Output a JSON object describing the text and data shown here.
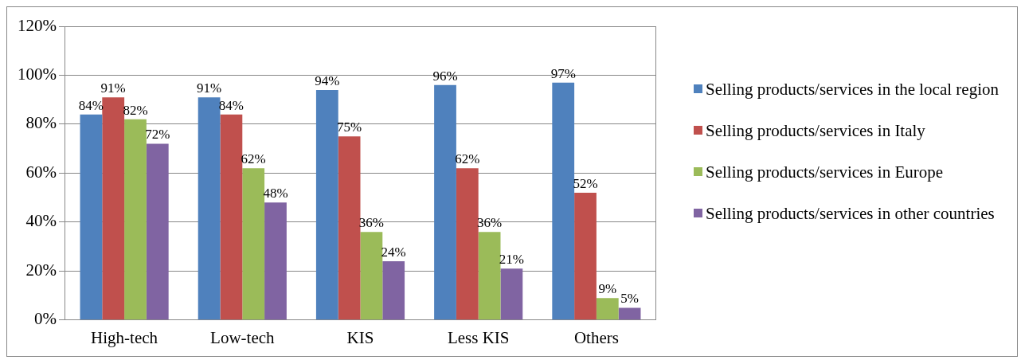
{
  "chart_data": {
    "type": "bar",
    "categories": [
      "High-tech",
      "Low-tech",
      "KIS",
      "Less KIS",
      "Others"
    ],
    "series": [
      {
        "name": "Selling products/services in the local region",
        "color": "#4f81bd",
        "values": [
          84,
          91,
          94,
          96,
          97
        ],
        "value_labels": [
          "84%",
          "91%",
          "94%",
          "96%",
          "97%"
        ]
      },
      {
        "name": "Selling products/services in Italy",
        "color": "#c0504d",
        "values": [
          91,
          84,
          75,
          62,
          52
        ],
        "value_labels": [
          "91%",
          "84%",
          "75%",
          "62%",
          "52%"
        ]
      },
      {
        "name": "Selling products/services in Europe",
        "color": "#9bbb59",
        "values": [
          82,
          62,
          36,
          36,
          9
        ],
        "value_labels": [
          "82%",
          "62%",
          "36%",
          "36%",
          "9%"
        ]
      },
      {
        "name": "Selling products/services in other countries",
        "color": "#8064a2",
        "values": [
          72,
          48,
          24,
          21,
          5
        ],
        "value_labels": [
          "72%",
          "48%",
          "24%",
          "21%",
          "5%"
        ]
      }
    ],
    "ylim": [
      0,
      120
    ],
    "yticks": [
      {
        "value": 0,
        "label": "0%"
      },
      {
        "value": 20,
        "label": "20%"
      },
      {
        "value": 40,
        "label": "40%"
      },
      {
        "value": 60,
        "label": "60%"
      },
      {
        "value": 80,
        "label": "80%"
      },
      {
        "value": 100,
        "label": "100%"
      },
      {
        "value": 120,
        "label": "120%"
      }
    ],
    "grid": "y",
    "legend": "right"
  }
}
